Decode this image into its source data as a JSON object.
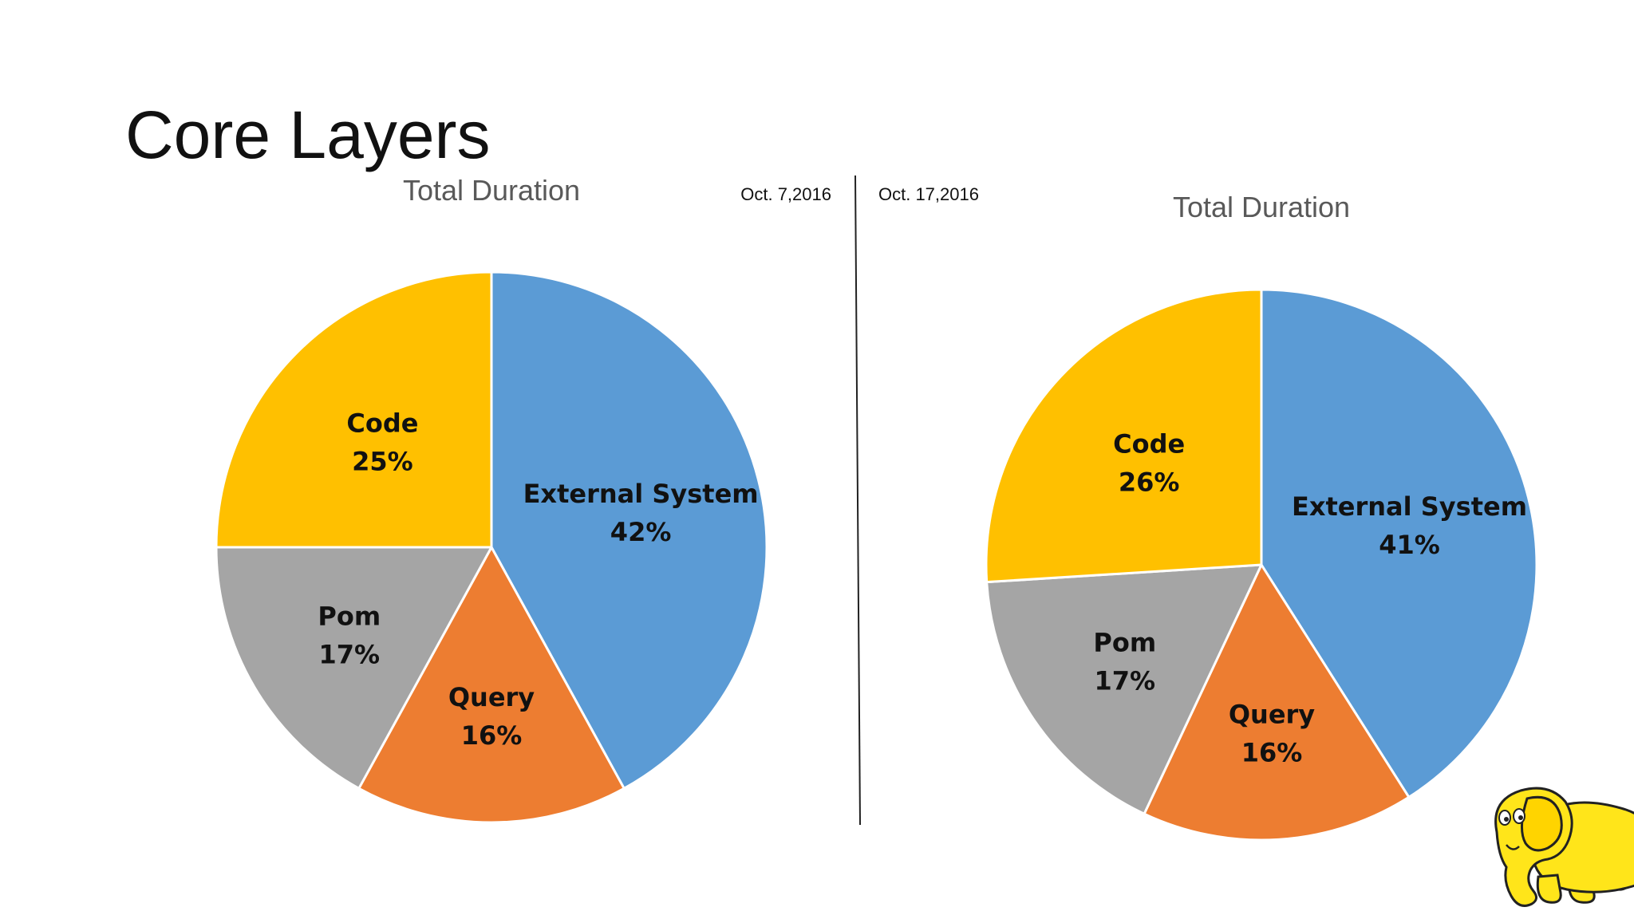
{
  "slide": {
    "title": "Core Layers",
    "left_date": "Oct. 7,2016",
    "right_date": "Oct. 17,2016",
    "logo_icon": "yellow-elephant-logo"
  },
  "colors": {
    "external_system": "#5B9BD5",
    "query": "#ED7D31",
    "pom": "#A5A5A5",
    "code": "#FFC000",
    "slice_border": "#ffffff"
  },
  "chart_data": [
    {
      "type": "pie",
      "title": "Total Duration",
      "date": "Oct. 7,2016",
      "categories": [
        "External System",
        "Query",
        "Pom",
        "Code"
      ],
      "values": [
        42,
        16,
        17,
        25
      ],
      "value_labels": [
        "42%",
        "16%",
        "17%",
        "25%"
      ],
      "start_angle": "12 o'clock, clockwise",
      "legend": "none (labels inside slices)"
    },
    {
      "type": "pie",
      "title": "Total Duration",
      "date": "Oct. 17,2016",
      "categories": [
        "External System",
        "Query",
        "Pom",
        "Code"
      ],
      "values": [
        41,
        16,
        17,
        26
      ],
      "value_labels": [
        "41%",
        "16%",
        "17%",
        "26%"
      ],
      "start_angle": "12 o'clock, clockwise",
      "legend": "none (labels inside slices)"
    }
  ]
}
